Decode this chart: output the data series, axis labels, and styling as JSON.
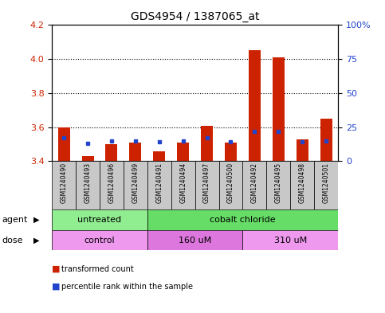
{
  "title": "GDS4954 / 1387065_at",
  "samples": [
    "GSM1240490",
    "GSM1240493",
    "GSM1240496",
    "GSM1240499",
    "GSM1240491",
    "GSM1240494",
    "GSM1240497",
    "GSM1240500",
    "GSM1240492",
    "GSM1240495",
    "GSM1240498",
    "GSM1240501"
  ],
  "red_values": [
    3.6,
    3.43,
    3.5,
    3.51,
    3.46,
    3.51,
    3.61,
    3.51,
    4.05,
    4.01,
    3.53,
    3.65
  ],
  "blue_values_pct": [
    17,
    13,
    15,
    15,
    14,
    15,
    17,
    14,
    22,
    22,
    14,
    15
  ],
  "ylim": [
    3.4,
    4.2
  ],
  "yticks_left": [
    3.4,
    3.6,
    3.8,
    4.0,
    4.2
  ],
  "yticks_right": [
    0,
    25,
    50,
    75,
    100
  ],
  "agent_groups": [
    {
      "label": "untreated",
      "start": 0,
      "end": 4,
      "color": "#90EE90"
    },
    {
      "label": "cobalt chloride",
      "start": 4,
      "end": 12,
      "color": "#66DD66"
    }
  ],
  "dose_groups": [
    {
      "label": "control",
      "start": 0,
      "end": 4,
      "color": "#EE99EE"
    },
    {
      "label": "160 uM",
      "start": 4,
      "end": 8,
      "color": "#DD77DD"
    },
    {
      "label": "310 uM",
      "start": 8,
      "end": 12,
      "color": "#EE99EE"
    }
  ],
  "bar_width": 0.5,
  "bar_base": 3.4,
  "red_color": "#CC2200",
  "blue_color": "#2244CC",
  "tick_label_color_left": "#CC2200",
  "tick_label_color_right": "#2244CC",
  "sample_bg_color": "#C8C8C8",
  "legend_items": [
    "transformed count",
    "percentile rank within the sample"
  ]
}
